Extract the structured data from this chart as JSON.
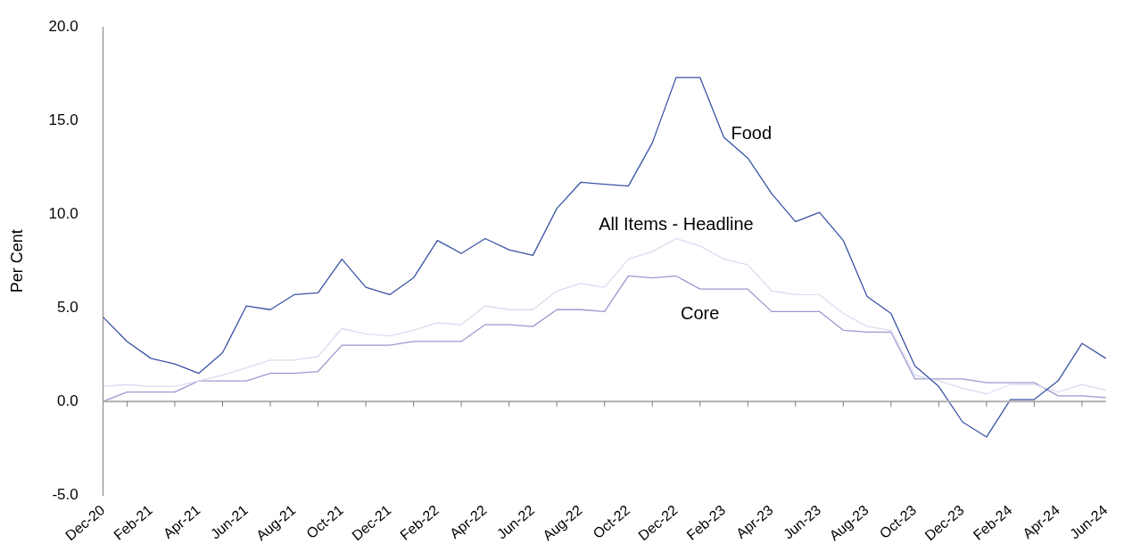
{
  "chart_data": {
    "type": "line",
    "ylabel": "Per Cent",
    "categories": [
      "Dec-20",
      null,
      "Feb-21",
      null,
      "Apr-21",
      null,
      "Jun-21",
      null,
      "Aug-21",
      null,
      "Oct-21",
      null,
      "Dec-21",
      null,
      "Feb-22",
      null,
      "Apr-22",
      null,
      "Jun-22",
      null,
      "Aug-22",
      null,
      "Oct-22",
      null,
      "Dec-22",
      null,
      "Feb-23",
      null,
      "Apr-23",
      null,
      "Jun-23",
      null,
      "Aug-23",
      null,
      "Oct-23",
      null,
      "Dec-23",
      null,
      "Feb-24",
      null,
      "Apr-24",
      null,
      "Jun-24"
    ],
    "series": [
      {
        "name": "Food",
        "color": "#3a53a4",
        "values": [
          4.5,
          3.2,
          2.3,
          2.0,
          1.5,
          2.6,
          5.1,
          4.9,
          5.7,
          5.8,
          7.6,
          6.1,
          5.7,
          6.6,
          8.6,
          7.9,
          8.7,
          8.1,
          7.8,
          10.3,
          11.7,
          11.6,
          11.5,
          13.8,
          17.3,
          17.3,
          14.1,
          13.0,
          11.1,
          9.6,
          10.1,
          8.6,
          5.6,
          4.7,
          1.9,
          0.8,
          -1.1,
          -1.9,
          0.1,
          0.1,
          1.1,
          3.1,
          2.3
        ]
      },
      {
        "name": "All Items - Headline",
        "color": "#dcdcf0",
        "values": [
          0.8,
          0.9,
          0.8,
          0.8,
          1.1,
          1.4,
          1.8,
          2.2,
          2.2,
          2.4,
          3.9,
          3.6,
          3.5,
          3.8,
          4.2,
          4.1,
          5.1,
          4.9,
          4.9,
          5.9,
          6.3,
          6.1,
          7.6,
          8.0,
          8.7,
          8.3,
          7.6,
          7.3,
          5.9,
          5.7,
          5.7,
          4.7,
          4.0,
          3.8,
          1.4,
          1.1,
          0.7,
          0.4,
          0.9,
          0.9,
          0.5,
          0.9,
          0.6
        ]
      },
      {
        "name": "Core",
        "color": "#9a9ad0",
        "values": [
          0.0,
          0.5,
          0.5,
          0.5,
          1.1,
          1.1,
          1.1,
          1.5,
          1.5,
          1.6,
          3.0,
          3.0,
          3.0,
          3.2,
          3.2,
          3.2,
          4.1,
          4.1,
          4.0,
          4.9,
          4.9,
          4.8,
          6.7,
          6.6,
          6.7,
          6.0,
          6.0,
          6.0,
          4.8,
          4.8,
          4.8,
          3.8,
          3.7,
          3.7,
          1.2,
          1.2,
          1.2,
          1.0,
          1.0,
          1.0,
          0.3,
          0.3,
          0.2
        ]
      }
    ],
    "ylim": [
      -5,
      20
    ],
    "yticks": [
      {
        "value": -5,
        "label": "-5.0"
      },
      {
        "value": 0,
        "label": "0.0"
      },
      {
        "value": 5,
        "label": "5.0"
      },
      {
        "value": 10,
        "label": "10.0"
      },
      {
        "value": 15,
        "label": "15.0"
      },
      {
        "value": 20,
        "label": "20.0"
      }
    ],
    "ref_lines": [
      {
        "axis": "y",
        "value": 0,
        "color": "#b0b0b0"
      }
    ],
    "grid": false,
    "legend": false,
    "marker": "none",
    "line_style": "solid"
  }
}
